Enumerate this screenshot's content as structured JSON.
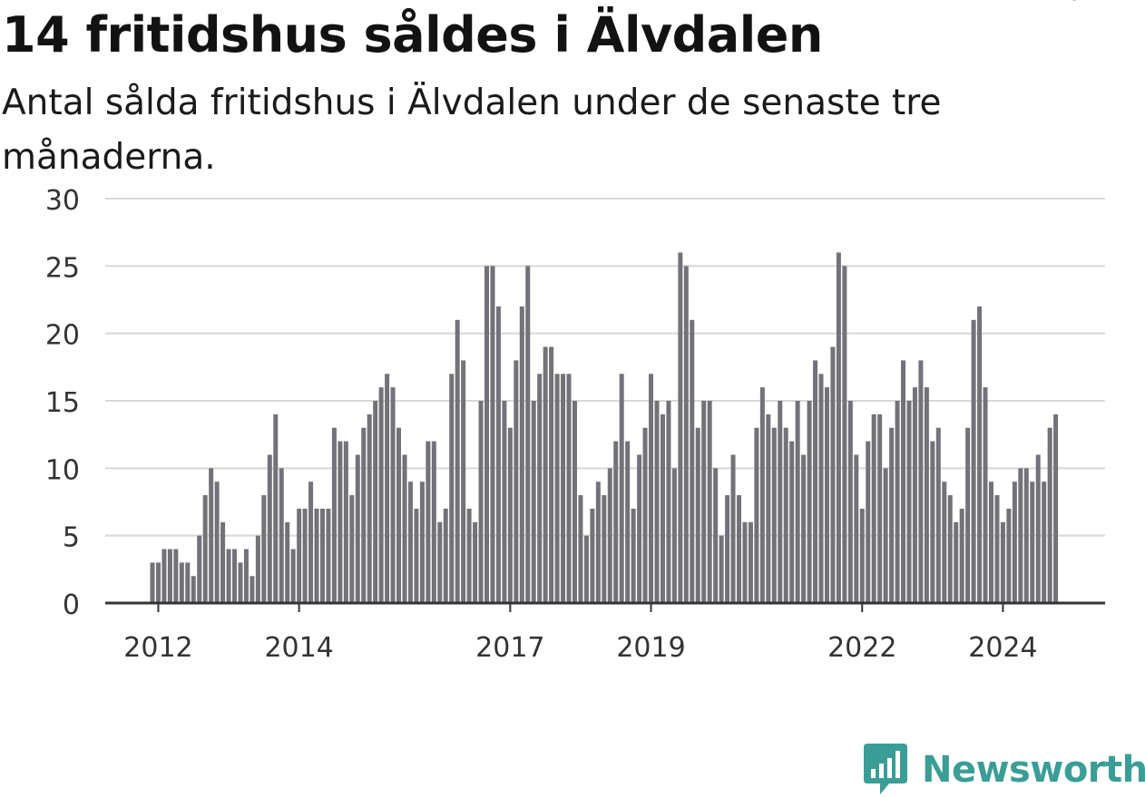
{
  "title": "14 fritidshus såldes i Älvdalen",
  "subtitle": "Antal sålda fritidshus i Älvdalen under de senaste tre månaderna.",
  "brand": {
    "name": "Newsworthy",
    "icon": "newsworthy-chart-icon",
    "color": "#3a9e96"
  },
  "colors": {
    "bar": "#737278",
    "highlight": "#179b97",
    "grid": "#d8d8d8",
    "axis": "#333333"
  },
  "chart_data": {
    "type": "bar",
    "title": "14 fritidshus såldes i Älvdalen",
    "subtitle": "Antal sålda fritidshus i Älvdalen under de senaste tre månaderna.",
    "xlabel": "",
    "ylabel": "",
    "ylim": [
      0,
      30
    ],
    "yticks": [
      0,
      5,
      10,
      15,
      20,
      25,
      30
    ],
    "xticks": [
      {
        "label": "2012",
        "index": 1
      },
      {
        "label": "2014",
        "index": 25
      },
      {
        "label": "2017",
        "index": 61
      },
      {
        "label": "2019",
        "index": 85
      },
      {
        "label": "2022",
        "index": 121
      },
      {
        "label": "2024",
        "index": 145
      }
    ],
    "grid": true,
    "highlight_index": 155,
    "highlight_label": "14",
    "values": [
      3,
      3,
      4,
      4,
      4,
      3,
      3,
      2,
      5,
      8,
      10,
      9,
      6,
      4,
      4,
      3,
      4,
      2,
      5,
      8,
      11,
      14,
      10,
      6,
      4,
      7,
      7,
      9,
      7,
      7,
      7,
      13,
      12,
      12,
      8,
      11,
      13,
      14,
      15,
      16,
      17,
      16,
      13,
      11,
      9,
      7,
      9,
      12,
      12,
      6,
      7,
      17,
      21,
      18,
      7,
      6,
      15,
      25,
      25,
      22,
      15,
      13,
      18,
      22,
      25,
      15,
      17,
      19,
      19,
      17,
      17,
      17,
      15,
      8,
      5,
      7,
      9,
      8,
      10,
      12,
      17,
      12,
      7,
      11,
      13,
      17,
      15,
      14,
      15,
      10,
      26,
      25,
      21,
      13,
      15,
      15,
      10,
      5,
      8,
      11,
      8,
      6,
      6,
      13,
      16,
      14,
      13,
      15,
      13,
      12,
      15,
      11,
      15,
      18,
      17,
      16,
      19,
      26,
      25,
      15,
      11,
      7,
      12,
      14,
      14,
      10,
      13,
      15,
      18,
      15,
      16,
      18,
      16,
      12,
      13,
      9,
      8,
      6,
      7,
      13,
      21,
      22,
      16,
      9,
      8,
      6,
      7,
      9,
      10,
      10,
      9,
      11,
      9,
      13,
      14
    ]
  }
}
